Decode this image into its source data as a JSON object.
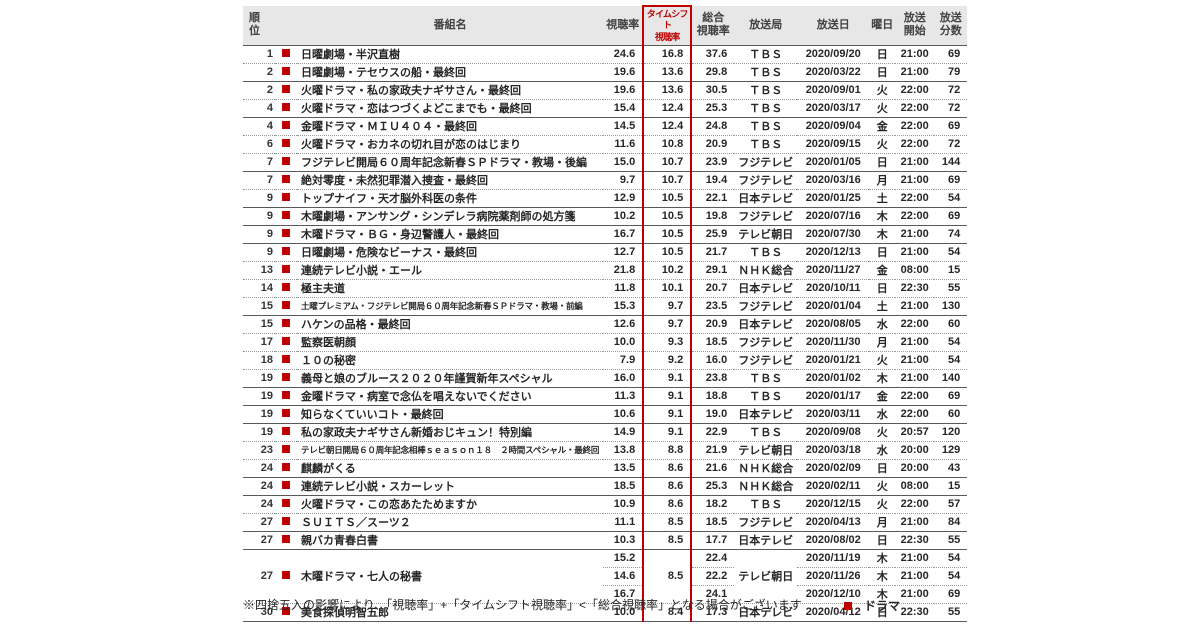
{
  "colors": {
    "accent_red": "#C00000",
    "header_bg": "#E7E7E7",
    "solid_border": "#595959",
    "dotted_border": "#999999"
  },
  "chart_data": {
    "type": "table",
    "columns": [
      "順位",
      "番組名",
      "視聴率",
      "タイムシフト視聴率",
      "総合視聴率",
      "放送局",
      "放送日",
      "曜日",
      "放送開始",
      "放送分数"
    ],
    "headers": {
      "rank": "順\n位",
      "name": "番組名",
      "rating": "視聴率",
      "timeshift": "タイムシフト\n視聴率",
      "total": "総合\n視聴率",
      "station": "放送局",
      "date": "放送日",
      "day": "曜日",
      "start": "放送\n開始",
      "minutes": "放送\n分数"
    },
    "rows": [
      {
        "rank": "1",
        "name": "日曜劇場・半沢直樹",
        "rating": "24.6",
        "timeshift": "16.8",
        "total": "37.6",
        "station": "ＴＢＳ",
        "date": "2020/09/20",
        "day": "日",
        "start": "21:00",
        "minutes": "69"
      },
      {
        "rank": "2",
        "name": "日曜劇場・テセウスの船・最終回",
        "rating": "19.6",
        "timeshift": "13.6",
        "total": "29.8",
        "station": "ＴＢＳ",
        "date": "2020/03/22",
        "day": "日",
        "start": "21:00",
        "minutes": "79"
      },
      {
        "rank": "2",
        "name": "火曜ドラマ・私の家政夫ナギサさん・最終回",
        "rating": "19.6",
        "timeshift": "13.6",
        "total": "30.5",
        "station": "ＴＢＳ",
        "date": "2020/09/01",
        "day": "火",
        "start": "22:00",
        "minutes": "72"
      },
      {
        "rank": "4",
        "name": "火曜ドラマ・恋はつづくよどこまでも・最終回",
        "rating": "15.4",
        "timeshift": "12.4",
        "total": "25.3",
        "station": "ＴＢＳ",
        "date": "2020/03/17",
        "day": "火",
        "start": "22:00",
        "minutes": "72"
      },
      {
        "rank": "4",
        "name": "金曜ドラマ・ＭＩＵ４０４・最終回",
        "rating": "14.5",
        "timeshift": "12.4",
        "total": "24.8",
        "station": "ＴＢＳ",
        "date": "2020/09/04",
        "day": "金",
        "start": "22:00",
        "minutes": "69"
      },
      {
        "rank": "6",
        "name": "火曜ドラマ・おカネの切れ目が恋のはじまり",
        "rating": "11.6",
        "timeshift": "10.8",
        "total": "20.9",
        "station": "ＴＢＳ",
        "date": "2020/09/15",
        "day": "火",
        "start": "22:00",
        "minutes": "72"
      },
      {
        "rank": "7",
        "name": "フジテレビ開局６０周年記念新春ＳＰドラマ・教場・後編",
        "rating": "15.0",
        "timeshift": "10.7",
        "total": "23.9",
        "station": "フジテレビ",
        "date": "2020/01/05",
        "day": "日",
        "start": "21:00",
        "minutes": "144"
      },
      {
        "rank": "7",
        "name": "絶対零度・未然犯罪潜入捜査・最終回",
        "rating": "9.7",
        "timeshift": "10.7",
        "total": "19.4",
        "station": "フジテレビ",
        "date": "2020/03/16",
        "day": "月",
        "start": "21:00",
        "minutes": "69"
      },
      {
        "rank": "9",
        "name": "トップナイフ・天才脳外科医の条件",
        "rating": "12.9",
        "timeshift": "10.5",
        "total": "22.1",
        "station": "日本テレビ",
        "date": "2020/01/25",
        "day": "土",
        "start": "22:00",
        "minutes": "54"
      },
      {
        "rank": "9",
        "name": "木曜劇場・アンサング・シンデレラ病院薬剤師の処方箋",
        "rating": "10.2",
        "timeshift": "10.5",
        "total": "19.8",
        "station": "フジテレビ",
        "date": "2020/07/16",
        "day": "木",
        "start": "22:00",
        "minutes": "69"
      },
      {
        "rank": "9",
        "name": "木曜ドラマ・ＢＧ・身辺警護人・最終回",
        "rating": "16.7",
        "timeshift": "10.5",
        "total": "25.9",
        "station": "テレビ朝日",
        "date": "2020/07/30",
        "day": "木",
        "start": "21:00",
        "minutes": "74"
      },
      {
        "rank": "9",
        "name": "日曜劇場・危険なビーナス・最終回",
        "rating": "12.7",
        "timeshift": "10.5",
        "total": "21.7",
        "station": "ＴＢＳ",
        "date": "2020/12/13",
        "day": "日",
        "start": "21:00",
        "minutes": "54"
      },
      {
        "rank": "13",
        "name": "連続テレビ小説・エール",
        "rating": "21.8",
        "timeshift": "10.2",
        "total": "29.1",
        "station": "ＮＨＫ総合",
        "date": "2020/11/27",
        "day": "金",
        "start": "08:00",
        "minutes": "15"
      },
      {
        "rank": "14",
        "name": "極主夫道",
        "rating": "11.8",
        "timeshift": "10.1",
        "total": "20.7",
        "station": "日本テレビ",
        "date": "2020/10/11",
        "day": "日",
        "start": "22:30",
        "minutes": "55"
      },
      {
        "rank": "15",
        "name": "土曜プレミアム・フジテレビ開局６０周年記念新春ＳＰドラマ・教場・前編",
        "small": true,
        "rating": "15.3",
        "timeshift": "9.7",
        "total": "23.5",
        "station": "フジテレビ",
        "date": "2020/01/04",
        "day": "土",
        "start": "21:00",
        "minutes": "130"
      },
      {
        "rank": "15",
        "name": "ハケンの品格・最終回",
        "rating": "12.6",
        "timeshift": "9.7",
        "total": "20.9",
        "station": "日本テレビ",
        "date": "2020/08/05",
        "day": "水",
        "start": "22:00",
        "minutes": "60"
      },
      {
        "rank": "17",
        "name": "監察医朝顔",
        "rating": "10.0",
        "timeshift": "9.3",
        "total": "18.5",
        "station": "フジテレビ",
        "date": "2020/11/30",
        "day": "月",
        "start": "21:00",
        "minutes": "54"
      },
      {
        "rank": "18",
        "name": "１０の秘密",
        "rating": "7.9",
        "timeshift": "9.2",
        "total": "16.0",
        "station": "フジテレビ",
        "date": "2020/01/21",
        "day": "火",
        "start": "21:00",
        "minutes": "54"
      },
      {
        "rank": "19",
        "name": "義母と娘のブルース２０２０年謹賀新年スペシャル",
        "rating": "16.0",
        "timeshift": "9.1",
        "total": "23.8",
        "station": "ＴＢＳ",
        "date": "2020/01/02",
        "day": "木",
        "start": "21:00",
        "minutes": "140"
      },
      {
        "rank": "19",
        "name": "金曜ドラマ・病室で念仏を唱えないでください",
        "rating": "11.3",
        "timeshift": "9.1",
        "total": "18.8",
        "station": "ＴＢＳ",
        "date": "2020/01/17",
        "day": "金",
        "start": "22:00",
        "minutes": "69"
      },
      {
        "rank": "19",
        "name": "知らなくていいコト・最終回",
        "rating": "10.6",
        "timeshift": "9.1",
        "total": "19.0",
        "station": "日本テレビ",
        "date": "2020/03/11",
        "day": "水",
        "start": "22:00",
        "minutes": "60"
      },
      {
        "rank": "19",
        "name": "私の家政夫ナギサさん新婚おじキュン！特別編",
        "rating": "14.9",
        "timeshift": "9.1",
        "total": "22.9",
        "station": "ＴＢＳ",
        "date": "2020/09/08",
        "day": "火",
        "start": "20:57",
        "minutes": "120"
      },
      {
        "rank": "23",
        "name": "テレビ朝日開局６０周年記念相棒ｓｅａｓｏｎ１８　２時間スペシャル・最終回",
        "small": true,
        "rating": "13.8",
        "timeshift": "8.8",
        "total": "21.9",
        "station": "テレビ朝日",
        "date": "2020/03/18",
        "day": "水",
        "start": "20:00",
        "minutes": "129"
      },
      {
        "rank": "24",
        "name": "麒麟がくる",
        "rating": "13.5",
        "timeshift": "8.6",
        "total": "21.6",
        "station": "ＮＨＫ総合",
        "date": "2020/02/09",
        "day": "日",
        "start": "20:00",
        "minutes": "43"
      },
      {
        "rank": "24",
        "name": "連続テレビ小説・スカーレット",
        "rating": "18.5",
        "timeshift": "8.6",
        "total": "25.3",
        "station": "ＮＨＫ総合",
        "date": "2020/02/11",
        "day": "火",
        "start": "08:00",
        "minutes": "15"
      },
      {
        "rank": "24",
        "name": "火曜ドラマ・この恋あたためますか",
        "rating": "10.9",
        "timeshift": "8.6",
        "total": "18.2",
        "station": "ＴＢＳ",
        "date": "2020/12/15",
        "day": "火",
        "start": "22:00",
        "minutes": "57"
      },
      {
        "rank": "27",
        "name": "ＳＵＩＴＳ／スーツ２",
        "rating": "11.1",
        "timeshift": "8.5",
        "total": "18.5",
        "station": "フジテレビ",
        "date": "2020/04/13",
        "day": "月",
        "start": "21:00",
        "minutes": "84"
      },
      {
        "rank": "27",
        "name": "親バカ青春白書",
        "rating": "10.3",
        "timeshift": "8.5",
        "total": "17.7",
        "station": "日本テレビ",
        "date": "2020/08/02",
        "day": "日",
        "start": "22:30",
        "minutes": "55"
      },
      {
        "rank": "27",
        "name": "木曜ドラマ・七人の秘書",
        "timeshift": "8.5",
        "station": "テレビ朝日",
        "sub": [
          {
            "rating": "15.2",
            "total": "22.4",
            "date": "2020/11/19",
            "day": "木",
            "start": "21:00",
            "minutes": "54"
          },
          {
            "rating": "14.6",
            "total": "22.2",
            "date": "2020/11/26",
            "day": "木",
            "start": "21:00",
            "minutes": "54"
          },
          {
            "rating": "16.7",
            "total": "24.1",
            "date": "2020/12/10",
            "day": "木",
            "start": "21:00",
            "minutes": "69"
          }
        ]
      },
      {
        "rank": "30",
        "name": "美食探偵明智五郎",
        "rating": "10.0",
        "timeshift": "8.4",
        "total": "17.3",
        "station": "日本テレビ",
        "date": "2020/04/12",
        "day": "日",
        "start": "22:30",
        "minutes": "55"
      }
    ]
  },
  "footer": {
    "note": "※四捨五入の影響により、「視聴率」+「タイムシフト視聴率」<「総合視聴率」となる場合がございます",
    "legend": {
      "marker": "■",
      "label": "ドラマ"
    }
  }
}
